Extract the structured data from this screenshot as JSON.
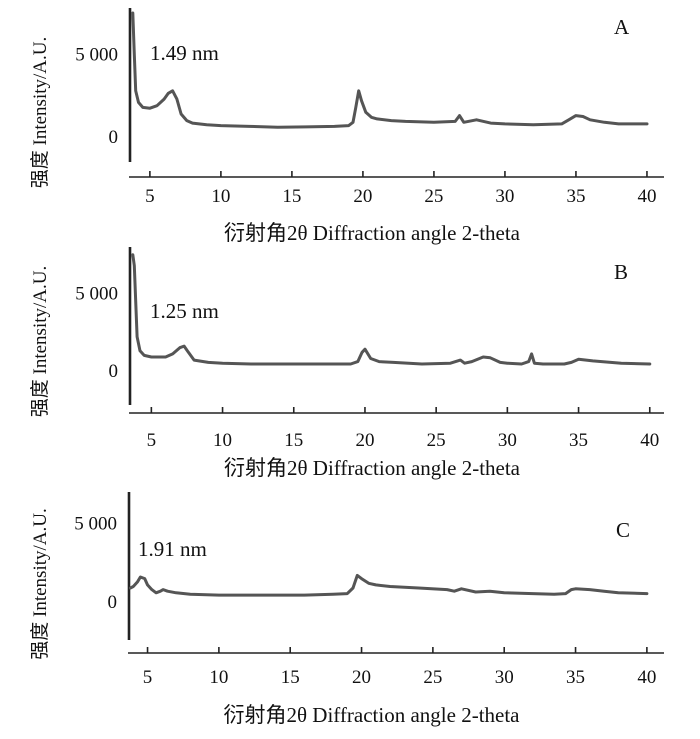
{
  "chart_data": [
    {
      "type": "line",
      "panel_label": "A",
      "annotation": "1.49 nm",
      "xlabel": "衍射角2θ Diffraction angle 2-theta",
      "ylabel": "强度 Intensity/A.U.",
      "x_ticks": [
        5,
        10,
        15,
        20,
        25,
        30,
        35,
        40
      ],
      "y_ticks": [
        {
          "value": 0,
          "label": "0"
        },
        {
          "value": 5000,
          "label": "5 000"
        }
      ],
      "xlim": [
        3.6,
        41.2
      ],
      "ylim": [
        -1500,
        7800
      ],
      "series": [
        {
          "x": [
            3.8,
            3.9,
            4.0,
            4.2,
            4.5,
            5.0,
            5.5,
            6.0,
            6.3,
            6.6,
            6.9,
            7.2,
            7.6,
            8.0,
            9.0,
            10.0,
            12.0,
            14.0,
            16.0,
            18.0,
            19.0,
            19.3,
            19.5,
            19.7,
            19.9,
            20.2,
            20.6,
            21.0,
            22.0,
            23.0,
            25.0,
            26.5,
            26.8,
            27.1,
            28.0,
            29.0,
            30.0,
            32.0,
            34.0,
            34.5,
            35.0,
            35.5,
            36.0,
            37.0,
            38.0,
            40.0
          ],
          "y": [
            7500,
            5000,
            2800,
            2100,
            1800,
            1750,
            1900,
            2300,
            2650,
            2800,
            2300,
            1400,
            1000,
            850,
            750,
            700,
            650,
            600,
            620,
            650,
            700,
            900,
            1800,
            2800,
            2200,
            1500,
            1200,
            1100,
            1000,
            950,
            900,
            950,
            1300,
            900,
            1050,
            850,
            800,
            750,
            800,
            1050,
            1300,
            1250,
            1050,
            900,
            800,
            800
          ]
        }
      ]
    },
    {
      "type": "line",
      "panel_label": "B",
      "annotation": "1.25 nm",
      "xlabel": "衍射角2θ Diffraction angle 2-theta",
      "ylabel": "强度 Intensity/A.U.",
      "x_ticks": [
        5,
        10,
        15,
        20,
        25,
        30,
        35,
        40
      ],
      "y_ticks": [
        {
          "value": 0,
          "label": "0"
        },
        {
          "value": 5000,
          "label": "5 000"
        }
      ],
      "xlim": [
        3.5,
        41.0
      ],
      "ylim": [
        -2200,
        8000
      ],
      "series": [
        {
          "x": [
            3.7,
            3.8,
            3.9,
            4.0,
            4.2,
            4.5,
            5.0,
            6.0,
            6.5,
            7.0,
            7.3,
            7.6,
            8.0,
            9.0,
            10.0,
            12.0,
            14.0,
            16.0,
            18.0,
            19.0,
            19.5,
            19.8,
            20.0,
            20.4,
            21.0,
            22.0,
            24.0,
            26.0,
            26.7,
            27.0,
            27.5,
            28.3,
            28.8,
            29.5,
            30.0,
            31.0,
            31.5,
            31.7,
            31.9,
            32.5,
            34.0,
            34.5,
            35.0,
            36.0,
            38.0,
            40.0
          ],
          "y": [
            7500,
            6800,
            4500,
            2200,
            1300,
            1000,
            900,
            900,
            1100,
            1500,
            1600,
            1200,
            700,
            550,
            500,
            450,
            450,
            450,
            450,
            450,
            600,
            1200,
            1400,
            800,
            600,
            550,
            450,
            500,
            700,
            500,
            600,
            900,
            850,
            550,
            500,
            450,
            600,
            1100,
            500,
            450,
            450,
            550,
            750,
            650,
            500,
            450
          ]
        }
      ]
    },
    {
      "type": "line",
      "panel_label": "C",
      "annotation": "1.91 nm",
      "xlabel": "衍射角2θ Diffraction angle 2-theta",
      "ylabel": "强度 Intensity/A.U.",
      "x_ticks": [
        5,
        10,
        15,
        20,
        25,
        30,
        35,
        40
      ],
      "y_ticks": [
        {
          "value": 0,
          "label": "0"
        },
        {
          "value": 5000,
          "label": "5 000"
        }
      ],
      "xlim": [
        3.7,
        41.2
      ],
      "ylim": [
        -2400,
        7000
      ],
      "series": [
        {
          "x": [
            3.8,
            4.0,
            4.3,
            4.5,
            4.8,
            5.0,
            5.3,
            5.6,
            5.9,
            6.1,
            6.4,
            7.0,
            8.0,
            10.0,
            12.0,
            14.0,
            16.0,
            18.0,
            19.0,
            19.4,
            19.7,
            20.0,
            20.5,
            21.0,
            22.0,
            24.0,
            26.0,
            26.5,
            27.0,
            28.0,
            29.0,
            30.0,
            32.0,
            33.5,
            34.3,
            34.7,
            35.0,
            36.0,
            37.0,
            38.0,
            40.0
          ],
          "y": [
            900,
            1000,
            1300,
            1600,
            1500,
            1100,
            800,
            600,
            700,
            800,
            700,
            600,
            500,
            450,
            450,
            450,
            450,
            500,
            550,
            900,
            1700,
            1500,
            1200,
            1100,
            1000,
            900,
            800,
            700,
            850,
            650,
            700,
            600,
            550,
            500,
            550,
            800,
            850,
            800,
            700,
            600,
            550
          ]
        }
      ]
    }
  ]
}
